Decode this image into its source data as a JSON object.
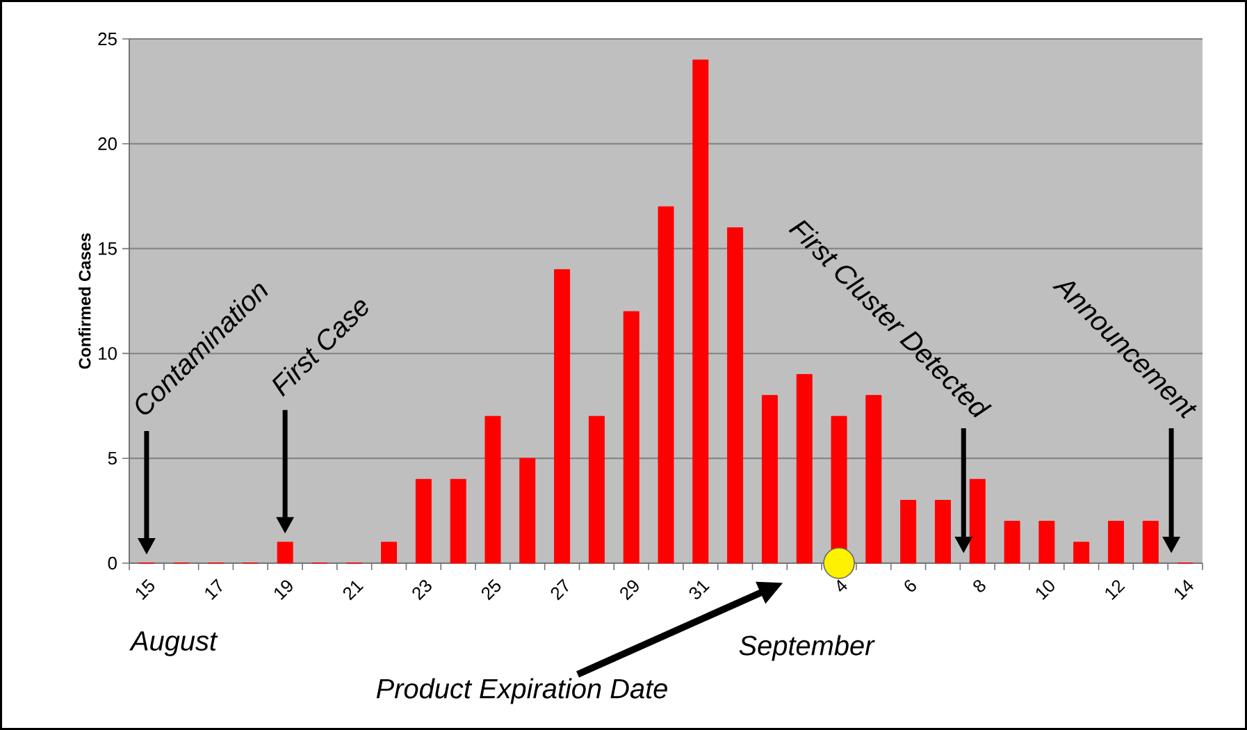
{
  "chart_data": {
    "type": "bar",
    "ylabel": "Confirmed Cases",
    "categories": [
      "15",
      null,
      "17",
      null,
      "19",
      null,
      "21",
      null,
      "23",
      null,
      "25",
      null,
      "27",
      null,
      "29",
      null,
      "31",
      null,
      null,
      null,
      "4",
      null,
      "6",
      null,
      "8",
      null,
      "10",
      null,
      "12",
      null,
      "14"
    ],
    "values": [
      0,
      0,
      0,
      0,
      1,
      0,
      0,
      1,
      4,
      4,
      7,
      5,
      14,
      7,
      12,
      17,
      24,
      16,
      8,
      9,
      7,
      8,
      3,
      3,
      4,
      2,
      2,
      1,
      2,
      2,
      0
    ],
    "color": "#ff0000",
    "ylim": [
      0,
      25
    ],
    "yticks": [
      0,
      5,
      10,
      15,
      20,
      25
    ],
    "grid": "y",
    "annotations": [
      "Contamination",
      "First Case",
      "First Cluster Detected",
      "Announcement",
      "Product Expiration Date",
      "August",
      "September"
    ]
  }
}
